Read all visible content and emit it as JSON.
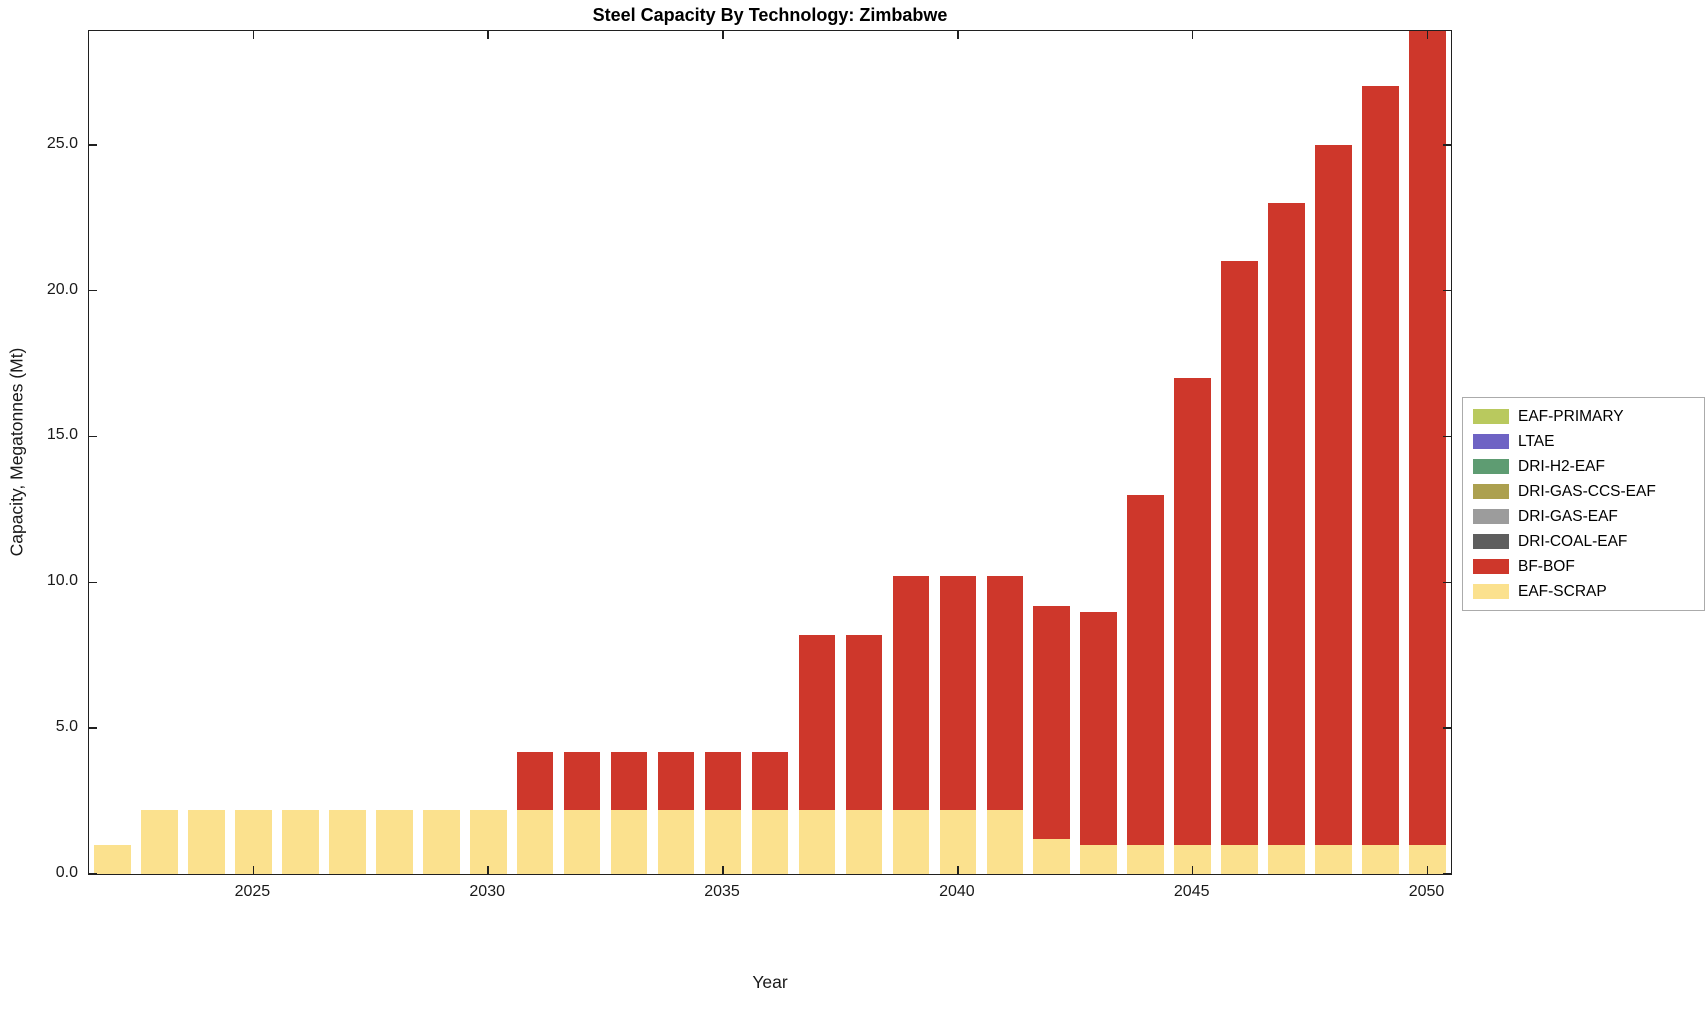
{
  "chart_data": {
    "type": "bar",
    "stacked": true,
    "title": "Steel Capacity By Technology: Zimbabwe",
    "xlabel": "Year",
    "ylabel": "Capacity, Megatonnes (Mt)",
    "ylim": [
      0,
      28.9
    ],
    "yticks": [
      0,
      5,
      10,
      15,
      20,
      25
    ],
    "ytick_format": "one-decimal",
    "xticks": [
      2025,
      2030,
      2035,
      2040,
      2045,
      2050
    ],
    "grid": false,
    "axis_color": "#202020",
    "categories": [
      2022,
      2023,
      2024,
      2025,
      2026,
      2027,
      2028,
      2029,
      2030,
      2031,
      2032,
      2033,
      2034,
      2035,
      2036,
      2037,
      2038,
      2039,
      2040,
      2041,
      2042,
      2043,
      2044,
      2045,
      2046,
      2047,
      2048,
      2049,
      2050
    ],
    "series": [
      {
        "name": "EAF-SCRAP",
        "color": "#FBE18E",
        "values": [
          1.0,
          2.2,
          2.2,
          2.2,
          2.2,
          2.2,
          2.2,
          2.2,
          2.2,
          2.2,
          2.2,
          2.2,
          2.2,
          2.2,
          2.2,
          2.2,
          2.2,
          2.2,
          2.2,
          2.2,
          1.2,
          1.0,
          1.0,
          1.0,
          1.0,
          1.0,
          1.0,
          1.0,
          1.0
        ]
      },
      {
        "name": "BF-BOF",
        "color": "#CE372B",
        "values": [
          0,
          0,
          0,
          0,
          0,
          0,
          0,
          0,
          0,
          2.0,
          2.0,
          2.0,
          2.0,
          2.0,
          2.0,
          6.0,
          6.0,
          8.0,
          8.0,
          8.0,
          8.0,
          8.0,
          12.0,
          16.0,
          20.0,
          22.0,
          24.0,
          26.0,
          28.0
        ]
      }
    ],
    "legend_position": "right-outside",
    "legend": [
      {
        "label": "EAF-PRIMARY",
        "color": "#B9C95E"
      },
      {
        "label": "LTAE",
        "color": "#6E63C4"
      },
      {
        "label": "DRI-H2-EAF",
        "color": "#5E9C72"
      },
      {
        "label": "DRI-GAS-CCS-EAF",
        "color": "#ACA04F"
      },
      {
        "label": "DRI-GAS-EAF",
        "color": "#9C9C9C"
      },
      {
        "label": "DRI-COAL-EAF",
        "color": "#5E5E5E"
      },
      {
        "label": "BF-BOF",
        "color": "#CE372B"
      },
      {
        "label": "EAF-SCRAP",
        "color": "#FBE18E"
      }
    ]
  }
}
